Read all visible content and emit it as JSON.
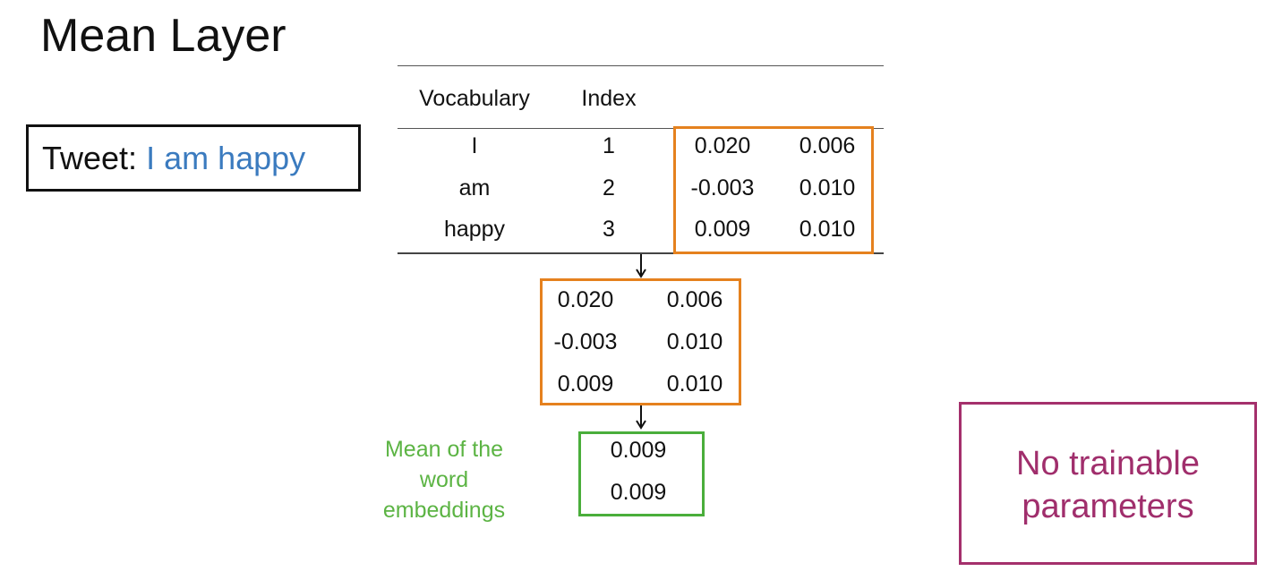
{
  "title": "Mean Layer",
  "tweet": {
    "prefix": "Tweet:",
    "text": "I am happy"
  },
  "table": {
    "headers": [
      "Vocabulary",
      "Index"
    ],
    "rows": [
      {
        "word": "I",
        "index": "1",
        "embedding": [
          "0.020",
          "0.006"
        ]
      },
      {
        "word": "am",
        "index": "2",
        "embedding": [
          "-0.003",
          "0.010"
        ]
      },
      {
        "word": "happy",
        "index": "3",
        "embedding": [
          "0.009",
          "0.010"
        ]
      }
    ]
  },
  "extracted": [
    [
      "0.020",
      "0.006"
    ],
    [
      "-0.003",
      "0.010"
    ],
    [
      "0.009",
      "0.010"
    ]
  ],
  "mean": {
    "label": [
      "Mean of the",
      "word",
      "embeddings"
    ],
    "values": [
      "0.009",
      "0.009"
    ]
  },
  "note": {
    "lines": [
      "No trainable",
      "parameters"
    ]
  },
  "colors": {
    "orange": "#e5811e",
    "green": "#4aae3b",
    "purple": "#a4306c",
    "blue": "#3b7bbf"
  }
}
